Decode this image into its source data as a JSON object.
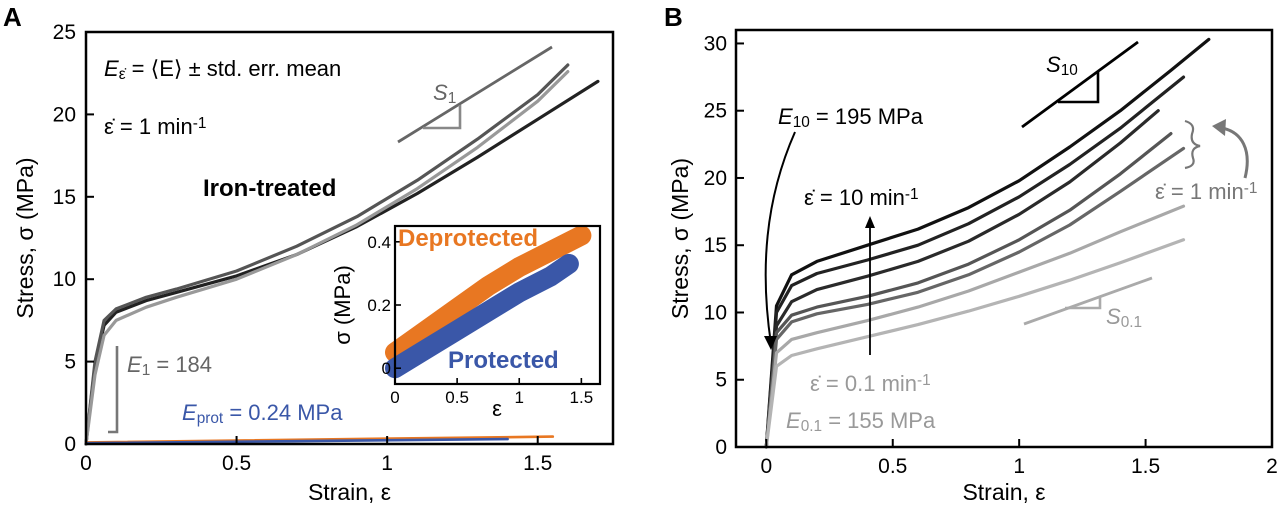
{
  "chart_data": [
    {
      "panel": "A",
      "type": "line",
      "xlabel": "Strain, ε",
      "ylabel": "Stress, σ (MPa)",
      "xlim": [
        0,
        1.75
      ],
      "ylim": [
        0,
        25
      ],
      "xticks": [
        "0",
        "0.5",
        "1",
        "1.5"
      ],
      "yticks": [
        "0",
        "5",
        "10",
        "15",
        "20",
        "25"
      ],
      "annotations": {
        "formula": "E",
        "formula_sub": "ε̇",
        "formula_rest": " = ⟨E⟩ ± std. err. mean",
        "rate_prefix": "ε̇ = 1 min",
        "rate_sup": "-1",
        "iron": "Iron-treated",
        "slope": "S",
        "slope_sub": "1",
        "e1": "E",
        "e1_sub": "1",
        "e1_rest": " = 184",
        "eprot": "E",
        "eprot_sub": "prot",
        "eprot_rest": " = 0.24 MPa"
      },
      "series": [
        {
          "color": "#222222",
          "x": [
            0,
            0.03,
            0.06,
            0.1,
            0.2,
            0.3,
            0.5,
            0.7,
            0.9,
            1.1,
            1.3,
            1.5,
            1.7
          ],
          "y": [
            0,
            4.8,
            7.2,
            8.0,
            8.7,
            9.2,
            10.2,
            11.5,
            13.2,
            15.2,
            17.4,
            19.7,
            22.0
          ]
        },
        {
          "color": "#555555",
          "x": [
            0,
            0.03,
            0.06,
            0.1,
            0.2,
            0.3,
            0.5,
            0.7,
            0.9,
            1.1,
            1.3,
            1.5,
            1.6
          ],
          "y": [
            0,
            5.0,
            7.5,
            8.2,
            8.9,
            9.4,
            10.5,
            12.0,
            13.8,
            16.0,
            18.5,
            21.2,
            23.0
          ]
        },
        {
          "color": "#999999",
          "x": [
            0,
            0.03,
            0.06,
            0.1,
            0.2,
            0.3,
            0.5,
            0.7,
            0.9,
            1.1,
            1.3,
            1.5,
            1.6
          ],
          "y": [
            0,
            4.2,
            6.6,
            7.5,
            8.3,
            8.9,
            10.0,
            11.5,
            13.3,
            15.5,
            18.0,
            20.8,
            22.6
          ]
        },
        {
          "color": "#e87722",
          "x": [
            0,
            1.55
          ],
          "y": [
            0.1,
            0.45
          ]
        },
        {
          "color": "#3a57a8",
          "x": [
            0,
            1.4
          ],
          "y": [
            0.05,
            0.3
          ]
        }
      ],
      "inset": {
        "xlabel": "ε",
        "ylabel": "σ (MPa)",
        "xlim": [
          0,
          1.65
        ],
        "ylim": [
          -0.05,
          0.45
        ],
        "xticks": [
          "0",
          "0.5",
          "1",
          "1.5"
        ],
        "yticks": [
          "0",
          "0.2",
          "0.4"
        ],
        "deprotected_label": "Deprotected",
        "protected_label": "Protected",
        "series": [
          {
            "name": "Deprotected",
            "color": "#e87722",
            "x": [
              0,
              0.25,
              0.5,
              0.75,
              1.0,
              1.25,
              1.5
            ],
            "y": [
              0.05,
              0.12,
              0.19,
              0.26,
              0.32,
              0.37,
              0.42
            ]
          },
          {
            "name": "Protected",
            "color": "#3a57a8",
            "x": [
              0,
              0.25,
              0.5,
              0.75,
              1.0,
              1.25,
              1.4
            ],
            "y": [
              0.0,
              0.06,
              0.12,
              0.18,
              0.24,
              0.29,
              0.33
            ]
          }
        ]
      }
    },
    {
      "panel": "B",
      "type": "line",
      "xlabel": "Strain, ε",
      "ylabel": "Stress, σ (MPa)",
      "xlim": [
        -0.12,
        2.0
      ],
      "ylim": [
        0,
        31
      ],
      "xticks": [
        "0",
        "0.5",
        "1",
        "1.5",
        "2"
      ],
      "yticks": [
        "0",
        "5",
        "10",
        "15",
        "20",
        "25",
        "30"
      ],
      "annotations": {
        "s10": "S",
        "s10_sub": "10",
        "e10": "E",
        "e10_sub": "10",
        "e10_rest": " = 195 MPa",
        "rate10_prefix": "ε̇ = 10 min",
        "rate10_sup": "-1",
        "rate1_prefix": "ε̇ = 1 min",
        "rate1_sup": "-1",
        "s01": "S",
        "s01_sub": "0.1",
        "rate01_prefix": "ε̇ = 0.1 min",
        "rate01_sup": "-1",
        "e01": "E",
        "e01_sub": "0.1",
        "e01_rest": " = 155 MPa"
      },
      "series": [
        {
          "color": "#111111",
          "x": [
            0,
            0.04,
            0.1,
            0.2,
            0.4,
            0.6,
            0.8,
            1.0,
            1.2,
            1.4,
            1.6,
            1.75
          ],
          "y": [
            0,
            10.5,
            12.8,
            13.8,
            15.0,
            16.2,
            17.8,
            19.8,
            22.3,
            25.0,
            28.0,
            30.3
          ]
        },
        {
          "color": "#222222",
          "x": [
            0,
            0.04,
            0.1,
            0.2,
            0.4,
            0.6,
            0.8,
            1.0,
            1.2,
            1.4,
            1.65
          ],
          "y": [
            0,
            10.0,
            12.0,
            12.9,
            13.9,
            15.0,
            16.6,
            18.6,
            21.0,
            23.7,
            27.5
          ]
        },
        {
          "color": "#2a2a2a",
          "x": [
            0,
            0.04,
            0.1,
            0.2,
            0.4,
            0.6,
            0.8,
            1.0,
            1.2,
            1.4,
            1.55
          ],
          "y": [
            0,
            9.0,
            10.8,
            11.7,
            12.7,
            13.8,
            15.3,
            17.3,
            19.7,
            22.6,
            25.0
          ]
        },
        {
          "color": "#555555",
          "x": [
            0,
            0.04,
            0.1,
            0.2,
            0.4,
            0.6,
            0.8,
            1.0,
            1.2,
            1.4,
            1.6
          ],
          "y": [
            0,
            8.5,
            9.8,
            10.4,
            11.2,
            12.2,
            13.6,
            15.4,
            17.6,
            20.3,
            23.3
          ]
        },
        {
          "color": "#666666",
          "x": [
            0,
            0.04,
            0.1,
            0.2,
            0.4,
            0.6,
            0.8,
            1.0,
            1.2,
            1.4,
            1.65
          ],
          "y": [
            0,
            8.0,
            9.3,
            9.9,
            10.6,
            11.5,
            12.8,
            14.5,
            16.5,
            19.0,
            22.2
          ]
        },
        {
          "color": "#a8a8a8",
          "x": [
            0,
            0.04,
            0.1,
            0.2,
            0.4,
            0.6,
            0.8,
            1.0,
            1.2,
            1.4,
            1.65
          ],
          "y": [
            0,
            7.0,
            8.0,
            8.5,
            9.4,
            10.4,
            11.6,
            13.0,
            14.4,
            16.0,
            17.9
          ]
        },
        {
          "color": "#b4b4b4",
          "x": [
            0,
            0.04,
            0.1,
            0.2,
            0.4,
            0.6,
            0.8,
            1.0,
            1.2,
            1.4,
            1.65
          ],
          "y": [
            0,
            6.0,
            6.8,
            7.3,
            8.2,
            9.1,
            10.1,
            11.2,
            12.4,
            13.7,
            15.4
          ]
        }
      ]
    }
  ]
}
